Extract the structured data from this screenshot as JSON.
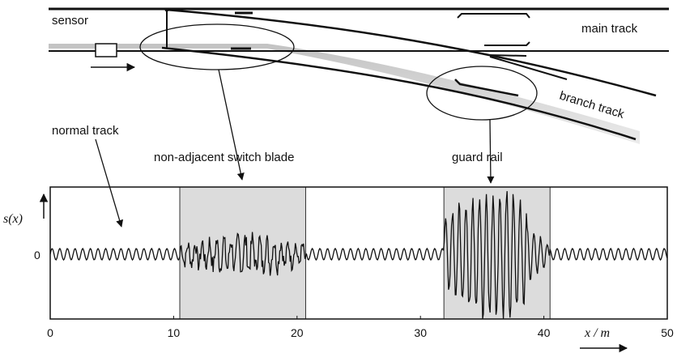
{
  "labels": {
    "sensor": "sensor",
    "main_track": "main track",
    "branch_track": "branch track",
    "normal_track": "normal track",
    "switch_blade": "non-adjacent switch blade",
    "guard_rail": "guard rail"
  },
  "plot": {
    "y_axis_label": "s(x)",
    "y_tick_zero": "0",
    "x_axis_label": "x / m",
    "x_ticks": [
      "0",
      "10",
      "20",
      "30",
      "40",
      "50"
    ],
    "x_range": [
      0,
      50
    ],
    "highlight_regions_m": [
      [
        10.5,
        20.7
      ],
      [
        31.9,
        40.5
      ]
    ],
    "highlight_color": "#dcdcdc"
  }
}
